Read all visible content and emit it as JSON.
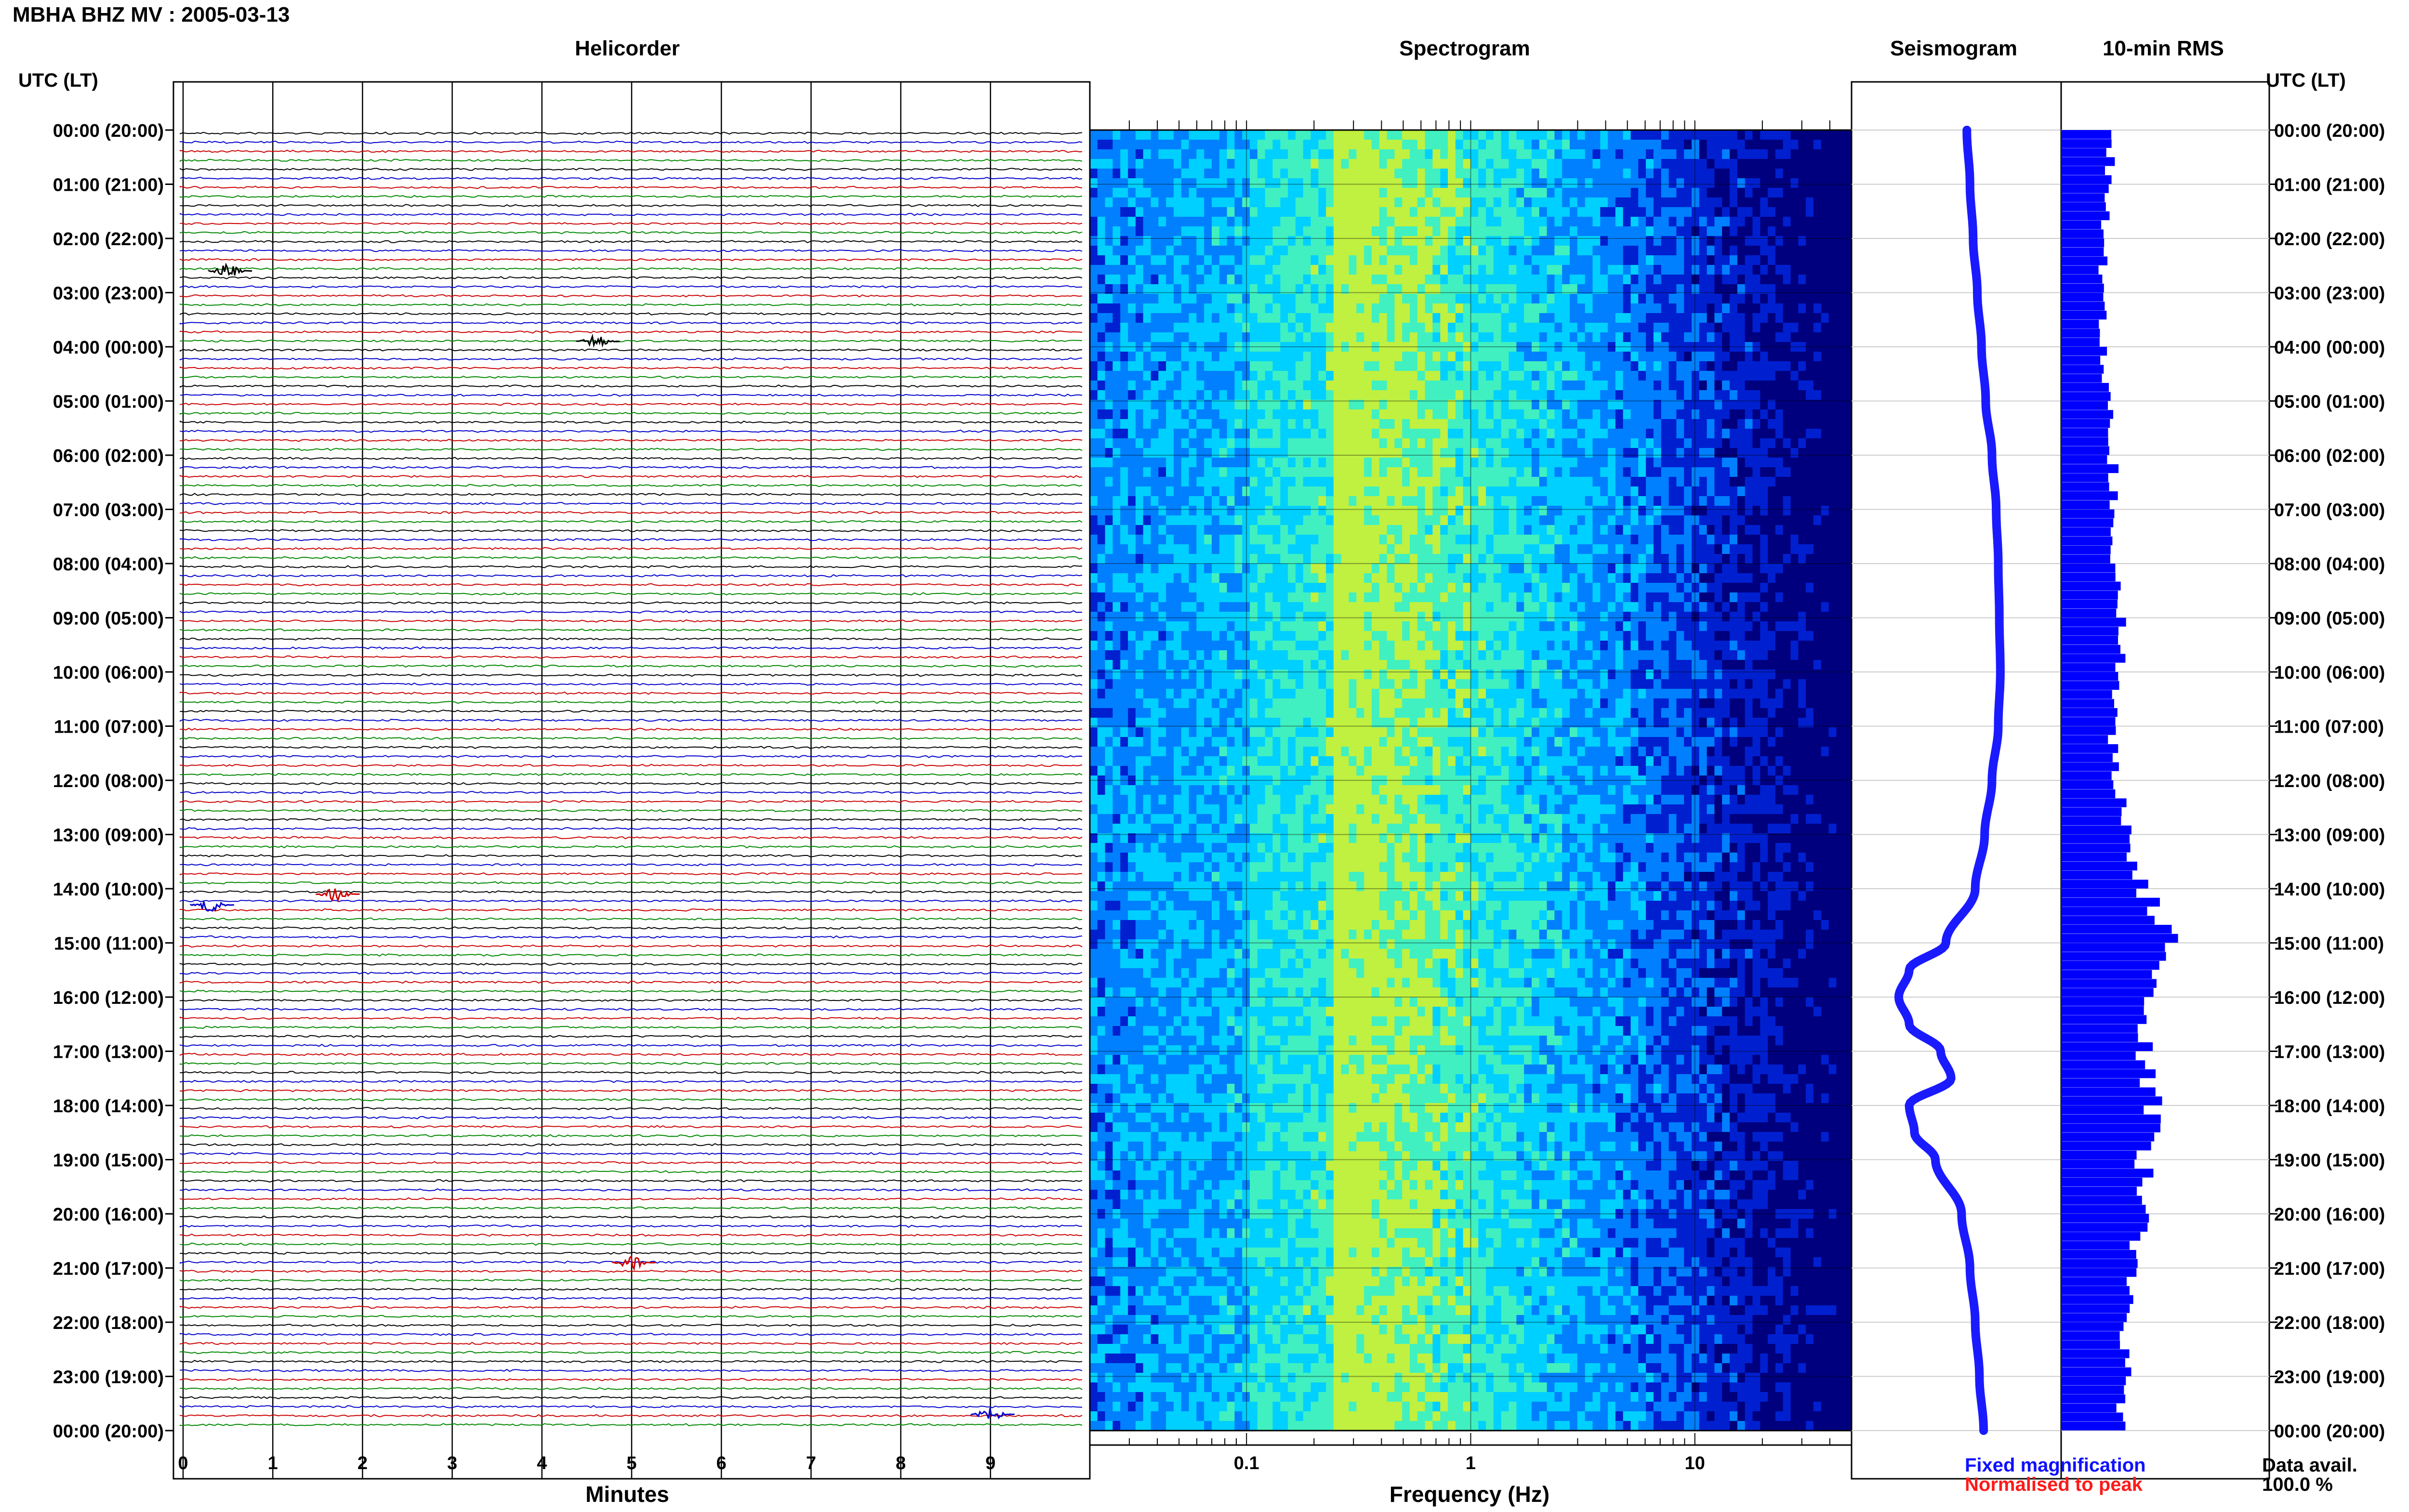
{
  "title": "MBHA BHZ MV : 2005-03-13",
  "panels": {
    "helicorder": "Helicorder",
    "spectrogram": "Spectrogram",
    "seismogram": "Seismogram",
    "rms": "10-min RMS"
  },
  "time_axis_header": "UTC (LT)",
  "time_labels": [
    "00:00 (20:00)",
    "01:00 (21:00)",
    "02:00 (22:00)",
    "03:00 (23:00)",
    "04:00 (00:00)",
    "05:00 (01:00)",
    "06:00 (02:00)",
    "07:00 (03:00)",
    "08:00 (04:00)",
    "09:00 (05:00)",
    "10:00 (06:00)",
    "11:00 (07:00)",
    "12:00 (08:00)",
    "13:00 (09:00)",
    "14:00 (10:00)",
    "15:00 (11:00)",
    "16:00 (12:00)",
    "17:00 (13:00)",
    "18:00 (14:00)",
    "19:00 (15:00)",
    "20:00 (16:00)",
    "21:00 (17:00)",
    "22:00 (18:00)",
    "23:00 (19:00)",
    "00:00 (20:00)"
  ],
  "legend": {
    "fixed": "Fixed magnification",
    "normalised": "Normalised to peak"
  },
  "data_availability": {
    "label": "Data avail.",
    "value": "100.0 %"
  },
  "colors": {
    "helicorder_traces": [
      "#000000",
      "#0000cc",
      "#cc0000",
      "#008800"
    ],
    "spectrogram_scale": [
      "#00007f",
      "#0020d0",
      "#0080ff",
      "#00d0ff",
      "#40f0c0",
      "#c0f040"
    ],
    "seismogram": "#1a1aff",
    "rms": "#0000ff"
  },
  "chart_data": [
    {
      "type": "line",
      "name": "helicorder",
      "xlabel": "Minutes",
      "xlim": [
        0,
        10
      ],
      "x_ticks": [
        0,
        1,
        2,
        3,
        4,
        5,
        6,
        7,
        8,
        9
      ],
      "traces_per_hour": 6,
      "hours": 24,
      "events": [
        {
          "hour": 2.6,
          "minute": 0.5,
          "color_index": 0
        },
        {
          "hour": 3.9,
          "minute": 4.6,
          "color_index": 0
        },
        {
          "hour": 14.1,
          "minute": 1.7,
          "color_index": 2
        },
        {
          "hour": 14.3,
          "minute": 0.3,
          "color_index": 1
        },
        {
          "hour": 20.9,
          "minute": 5.0,
          "color_index": 2
        },
        {
          "hour": 23.7,
          "minute": 9.0,
          "color_index": 1
        }
      ]
    },
    {
      "type": "heatmap",
      "name": "spectrogram",
      "xlabel": "Frequency (Hz)",
      "x_scale": "log",
      "xlim": [
        0.02,
        50
      ],
      "x_tick_labels": [
        {
          "value": 0.1,
          "label": "0.1"
        },
        {
          "value": 1,
          "label": "1"
        },
        {
          "value": 10,
          "label": "10"
        }
      ],
      "peak_frequency_hz": 0.25
    },
    {
      "type": "line",
      "name": "seismogram",
      "x_hours": [
        0,
        1,
        2,
        3,
        4,
        5,
        6,
        7,
        8,
        9,
        10,
        11,
        12,
        13,
        14,
        15,
        15.5,
        16,
        16.5,
        17,
        17.5,
        18,
        18.5,
        19,
        20,
        21,
        22,
        23,
        24
      ],
      "offset": [
        0.1,
        0.13,
        0.16,
        0.2,
        0.24,
        0.28,
        0.34,
        0.38,
        0.4,
        0.41,
        0.42,
        0.4,
        0.34,
        0.27,
        0.18,
        -0.1,
        -0.45,
        -0.55,
        -0.45,
        -0.15,
        -0.05,
        -0.45,
        -0.4,
        -0.2,
        0.05,
        0.13,
        0.18,
        0.22,
        0.26
      ]
    },
    {
      "type": "bar",
      "name": "rms",
      "orientation": "horizontal",
      "bins_per_hour": 6,
      "hourly_rms": [
        0.25,
        0.22,
        0.2,
        0.2,
        0.2,
        0.22,
        0.25,
        0.25,
        0.25,
        0.28,
        0.28,
        0.25,
        0.28,
        0.33,
        0.4,
        0.55,
        0.42,
        0.4,
        0.45,
        0.4,
        0.38,
        0.35,
        0.32,
        0.3,
        0.3
      ]
    }
  ]
}
